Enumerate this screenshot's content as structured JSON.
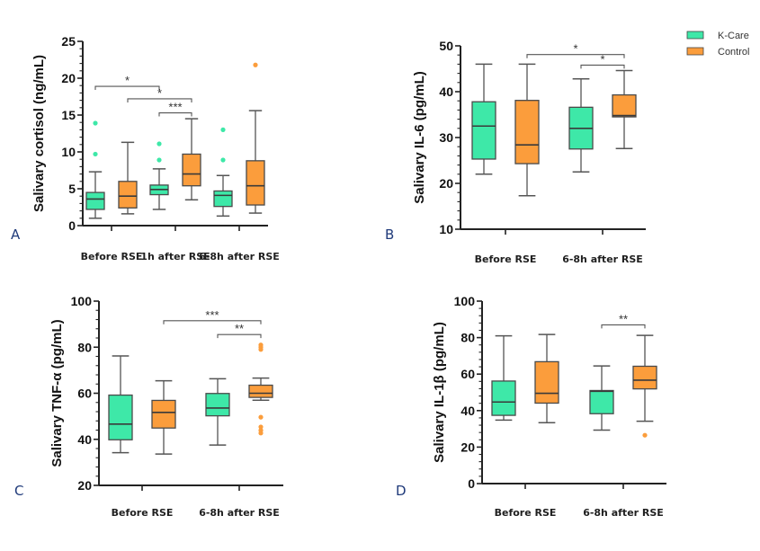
{
  "legend": {
    "items": [
      {
        "label": "K-Care",
        "color": "#3ee8a8"
      },
      {
        "label": "Control",
        "color": "#fb9d3c"
      }
    ],
    "placement": "top-right"
  },
  "chart_data": [
    {
      "type": "box",
      "panel": "A",
      "title": "",
      "xlabel": "",
      "ylabel": "Salivary cortisol (ng/mL)",
      "ylim": [
        0,
        25
      ],
      "yticks": [
        0,
        5,
        10,
        15,
        20,
        25
      ],
      "categories": [
        "Before RSE",
        "1h after RSE",
        "6-8h after RSE"
      ],
      "series": [
        {
          "name": "K-Care",
          "boxes": [
            {
              "min": 1.0,
              "q1": 2.2,
              "median": 3.6,
              "q3": 4.5,
              "max": 7.3,
              "outliers": [
                9.7,
                13.9
              ]
            },
            {
              "min": 2.2,
              "q1": 4.2,
              "median": 4.9,
              "q3": 5.5,
              "max": 7.7,
              "outliers": [
                8.9,
                11.1
              ]
            },
            {
              "min": 1.3,
              "q1": 2.6,
              "median": 4.1,
              "q3": 4.7,
              "max": 6.8,
              "outliers": [
                8.9,
                13.0
              ]
            }
          ]
        },
        {
          "name": "Control",
          "boxes": [
            {
              "min": 1.6,
              "q1": 2.4,
              "median": 4.0,
              "q3": 6.0,
              "max": 11.3,
              "outliers": []
            },
            {
              "min": 3.5,
              "q1": 5.4,
              "median": 7.0,
              "q3": 9.7,
              "max": 14.5,
              "outliers": []
            },
            {
              "min": 1.7,
              "q1": 2.8,
              "median": 5.4,
              "q3": 8.8,
              "max": 15.6,
              "outliers": [
                21.8
              ]
            }
          ]
        }
      ],
      "significance": [
        {
          "from": [
            0,
            "K-Care"
          ],
          "to": [
            1,
            "K-Care"
          ],
          "y": 18.9,
          "label": "*"
        },
        {
          "from": [
            0,
            "Control"
          ],
          "to": [
            1,
            "Control"
          ],
          "y": 17.2,
          "label": "*"
        },
        {
          "from": [
            1,
            "K-Care"
          ],
          "to": [
            1,
            "Control"
          ],
          "y": 15.3,
          "label": "***"
        }
      ]
    },
    {
      "type": "box",
      "panel": "B",
      "title": "",
      "xlabel": "",
      "ylabel": "Salivary IL-6 (pg/mL)",
      "ylim": [
        10,
        50
      ],
      "yticks": [
        10,
        20,
        30,
        40,
        50
      ],
      "categories": [
        "Before RSE",
        "6-8h after RSE"
      ],
      "series": [
        {
          "name": "K-Care",
          "boxes": [
            {
              "min": 22.0,
              "q1": 25.3,
              "median": 32.5,
              "q3": 37.8,
              "max": 46.0,
              "outliers": []
            },
            {
              "min": 22.5,
              "q1": 27.5,
              "median": 32.0,
              "q3": 36.6,
              "max": 42.8,
              "outliers": []
            }
          ]
        },
        {
          "name": "Control",
          "boxes": [
            {
              "min": 17.3,
              "q1": 24.3,
              "median": 28.4,
              "q3": 38.1,
              "max": 46.0,
              "outliers": []
            },
            {
              "min": 27.6,
              "q1": 34.5,
              "median": 34.8,
              "q3": 39.3,
              "max": 44.6,
              "outliers": []
            }
          ]
        }
      ],
      "significance": [
        {
          "from": [
            0,
            "Control"
          ],
          "to": [
            1,
            "Control"
          ],
          "y": 48.1,
          "label": "*"
        },
        {
          "from": [
            1,
            "K-Care"
          ],
          "to": [
            1,
            "Control"
          ],
          "y": 45.8,
          "label": "*"
        }
      ]
    },
    {
      "type": "box",
      "panel": "C",
      "title": "",
      "xlabel": "",
      "ylabel": "Salivary TNF-α (pg/mL)",
      "ylim": [
        20,
        100
      ],
      "yticks": [
        20,
        40,
        60,
        80,
        100
      ],
      "categories": [
        "Before RSE",
        "6-8h after RSE"
      ],
      "series": [
        {
          "name": "K-Care",
          "boxes": [
            {
              "min": 34.2,
              "q1": 39.8,
              "median": 46.6,
              "q3": 59.2,
              "max": 76.2,
              "outliers": []
            },
            {
              "min": 37.5,
              "q1": 50.2,
              "median": 53.6,
              "q3": 59.9,
              "max": 66.3,
              "outliers": []
            }
          ]
        },
        {
          "name": "Control",
          "boxes": [
            {
              "min": 33.6,
              "q1": 44.9,
              "median": 51.7,
              "q3": 56.9,
              "max": 65.4,
              "outliers": []
            },
            {
              "min": 57.0,
              "q1": 58.2,
              "median": 60.0,
              "q3": 63.5,
              "max": 66.6,
              "outliers": [
                81.0,
                80.0,
                79.0,
                49.6,
                45.4,
                43.9,
                42.7
              ]
            }
          ]
        }
      ],
      "significance": [
        {
          "from": [
            0,
            "Control"
          ],
          "to": [
            1,
            "Control"
          ],
          "y": 91.5,
          "label": "***"
        },
        {
          "from": [
            1,
            "K-Care"
          ],
          "to": [
            1,
            "Control"
          ],
          "y": 85.5,
          "label": "**"
        }
      ]
    },
    {
      "type": "box",
      "panel": "D",
      "title": "",
      "xlabel": "",
      "ylabel": "Salivary IL-1β (pg/mL)",
      "ylim": [
        0,
        100
      ],
      "yticks": [
        0,
        20,
        40,
        60,
        80,
        100
      ],
      "categories": [
        "Before RSE",
        "6-8h after RSE"
      ],
      "series": [
        {
          "name": "K-Care",
          "boxes": [
            {
              "min": 34.8,
              "q1": 37.4,
              "median": 44.7,
              "q3": 56.2,
              "max": 81.0,
              "outliers": []
            },
            {
              "min": 29.3,
              "q1": 38.3,
              "median": 50.6,
              "q3": 51.0,
              "max": 64.5,
              "outliers": []
            }
          ]
        },
        {
          "name": "Control",
          "boxes": [
            {
              "min": 33.4,
              "q1": 44.1,
              "median": 49.5,
              "q3": 66.8,
              "max": 81.7,
              "outliers": []
            },
            {
              "min": 34.2,
              "q1": 51.9,
              "median": 56.7,
              "q3": 64.3,
              "max": 81.2,
              "outliers": [
                26.5
              ]
            }
          ]
        }
      ],
      "significance": [
        {
          "from": [
            1,
            "K-Care"
          ],
          "to": [
            1,
            "Control"
          ],
          "y": 87.0,
          "label": "**"
        }
      ]
    }
  ]
}
